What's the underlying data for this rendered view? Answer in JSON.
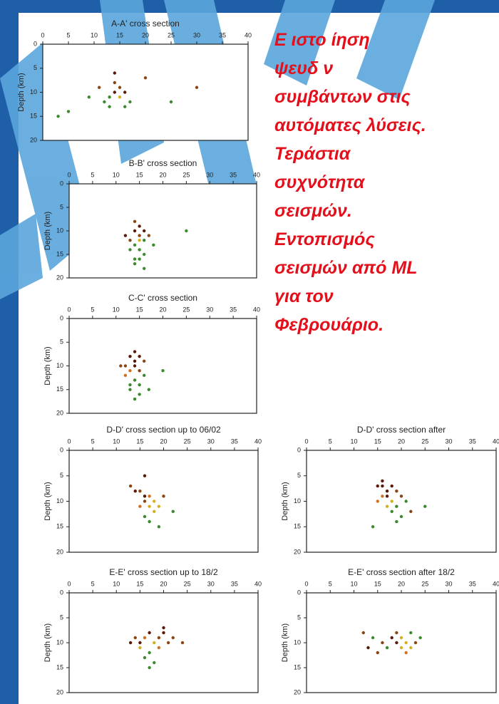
{
  "notes": [
    "Ε      ιστο      ίηση",
    "ψευδ   ν",
    "συμβάντων στις",
    "αυτόματες λύσεις.",
    "Τεράστια",
    "συχνότητα",
    "σεισμών.",
    "Εντοπισμός",
    "σεισμών από ML",
    "για τον",
    "Φεβρουάριο."
  ],
  "chart_data": [
    {
      "type": "scatter",
      "title": "A-A' cross section",
      "y_label": "Depth (km)",
      "xlim": [
        0,
        40
      ],
      "xticks": [
        0,
        5,
        10,
        15,
        20,
        25,
        30,
        35,
        40
      ],
      "ylim": [
        20,
        0
      ],
      "yticks": [
        0,
        5,
        10,
        15,
        20
      ],
      "x": [
        14,
        13,
        15,
        12,
        16,
        14,
        13,
        15,
        17,
        11,
        5,
        3,
        20,
        25,
        14,
        16,
        30,
        9
      ],
      "values": [
        10,
        11,
        9,
        12,
        10,
        8,
        13,
        11,
        12,
        9,
        14,
        15,
        7,
        12,
        6,
        13,
        9,
        11
      ],
      "colors": [
        "#5a1a0a",
        "#3c8a2e",
        "#8b4513",
        "#3c8a2e",
        "#5a1a0a",
        "#8b4513",
        "#3c8a2e",
        "#d4b020",
        "#3c8a2e",
        "#8b4513",
        "#3c8a2e",
        "#3c8a2e",
        "#8b4513",
        "#3c8a2e",
        "#5a1a0a",
        "#3c8a2e",
        "#8b4513",
        "#3c8a2e"
      ]
    },
    {
      "type": "scatter",
      "title": "B-B' cross section",
      "y_label": "Depth (km)",
      "xlim": [
        0,
        40
      ],
      "xticks": [
        0,
        5,
        10,
        15,
        20,
        25,
        30,
        35,
        40
      ],
      "ylim": [
        20,
        0
      ],
      "yticks": [
        0,
        5,
        10,
        15,
        20
      ],
      "x": [
        14,
        15,
        16,
        14,
        15,
        13,
        16,
        15,
        14,
        17,
        15,
        13,
        16,
        25,
        14,
        12,
        18,
        15,
        16,
        14
      ],
      "values": [
        10,
        11,
        12,
        13,
        14,
        12,
        15,
        16,
        17,
        11,
        9,
        14,
        18,
        10,
        8,
        11,
        13,
        12,
        10,
        16
      ],
      "colors": [
        "#5a1a0a",
        "#8b4513",
        "#3c8a2e",
        "#3c8a2e",
        "#3c8a2e",
        "#8b4513",
        "#3c8a2e",
        "#3c8a2e",
        "#3c8a2e",
        "#8b4513",
        "#5a1a0a",
        "#3c8a2e",
        "#3c8a2e",
        "#3c8a2e",
        "#8b4513",
        "#5a1a0a",
        "#3c8a2e",
        "#d4b020",
        "#5a1a0a",
        "#3c8a2e"
      ]
    },
    {
      "type": "scatter",
      "title": "C-C' cross section",
      "y_label": "Depth (km)",
      "xlim": [
        0,
        40
      ],
      "xticks": [
        0,
        5,
        10,
        15,
        20,
        25,
        30,
        35,
        40
      ],
      "ylim": [
        20,
        0
      ],
      "yticks": [
        0,
        5,
        10,
        15,
        20
      ],
      "x": [
        13,
        14,
        15,
        12,
        14,
        13,
        15,
        16,
        14,
        13,
        15,
        17,
        12,
        14,
        16,
        20,
        11,
        15,
        13,
        14
      ],
      "values": [
        8,
        9,
        8,
        10,
        10,
        11,
        11,
        12,
        13,
        14,
        14,
        15,
        12,
        7,
        9,
        11,
        10,
        16,
        15,
        17
      ],
      "colors": [
        "#5a1a0a",
        "#5a1a0a",
        "#5a1a0a",
        "#8b4513",
        "#5a1a0a",
        "#d07020",
        "#8b4513",
        "#3c8a2e",
        "#3c8a2e",
        "#3c8a2e",
        "#3c8a2e",
        "#3c8a2e",
        "#d07020",
        "#5a1a0a",
        "#8b4513",
        "#3c8a2e",
        "#8b4513",
        "#3c8a2e",
        "#3c8a2e",
        "#3c8a2e"
      ]
    },
    {
      "type": "scatter",
      "title": "D-D' cross section up to 06/02",
      "y_label": "Depth (km)",
      "xlim": [
        0,
        40
      ],
      "xticks": [
        0,
        5,
        10,
        15,
        20,
        25,
        30,
        35,
        40
      ],
      "ylim": [
        20,
        0
      ],
      "yticks": [
        0,
        5,
        10,
        15,
        20
      ],
      "x": [
        14,
        15,
        16,
        17,
        18,
        16,
        17,
        15,
        18,
        19,
        20,
        16,
        17,
        13,
        22,
        19,
        16
      ],
      "values": [
        8,
        8,
        9,
        9,
        10,
        10,
        11,
        11,
        12,
        11,
        9,
        13,
        14,
        7,
        12,
        15,
        5
      ],
      "colors": [
        "#5a1a0a",
        "#8b4513",
        "#5a1a0a",
        "#d07020",
        "#d4b020",
        "#8b4513",
        "#d4b020",
        "#d07020",
        "#d4b020",
        "#d4b020",
        "#8b4513",
        "#3c8a2e",
        "#3c8a2e",
        "#8b4513",
        "#3c8a2e",
        "#3c8a2e",
        "#5a1a0a"
      ]
    },
    {
      "type": "scatter",
      "title": "D-D' cross section after",
      "y_label": "Depth (km)",
      "xlim": [
        0,
        40
      ],
      "xticks": [
        0,
        5,
        10,
        15,
        20,
        25,
        30,
        35,
        40
      ],
      "ylim": [
        20,
        0
      ],
      "yticks": [
        0,
        5,
        10,
        15,
        20
      ],
      "x": [
        15,
        16,
        17,
        18,
        19,
        16,
        17,
        18,
        20,
        15,
        17,
        19,
        21,
        18,
        20,
        25,
        16,
        19,
        22,
        14
      ],
      "values": [
        7,
        7,
        8,
        7,
        8,
        9,
        9,
        10,
        9,
        10,
        11,
        11,
        10,
        12,
        13,
        11,
        6,
        14,
        12,
        15
      ],
      "colors": [
        "#5a1a0a",
        "#5a1a0a",
        "#5a1a0a",
        "#5a1a0a",
        "#8b4513",
        "#d07020",
        "#5a1a0a",
        "#d4b020",
        "#8b4513",
        "#d07020",
        "#d4b020",
        "#3c8a2e",
        "#3c8a2e",
        "#3c8a2e",
        "#3c8a2e",
        "#3c8a2e",
        "#5a1a0a",
        "#3c8a2e",
        "#8b4513",
        "#3c8a2e"
      ]
    },
    {
      "type": "scatter",
      "title": "E-E' cross section up to 18/2",
      "y_label": "Depth (km)",
      "xlim": [
        0,
        40
      ],
      "xticks": [
        0,
        5,
        10,
        15,
        20,
        25,
        30,
        35,
        40
      ],
      "ylim": [
        20,
        0
      ],
      "yticks": [
        0,
        5,
        10,
        15,
        20
      ],
      "x": [
        14,
        15,
        16,
        17,
        18,
        19,
        20,
        21,
        15,
        17,
        19,
        16,
        18,
        22,
        13,
        17,
        20,
        24
      ],
      "values": [
        9,
        10,
        9,
        8,
        10,
        9,
        8,
        10,
        11,
        12,
        11,
        13,
        14,
        9,
        10,
        15,
        7,
        10
      ],
      "colors": [
        "#8b4513",
        "#5a1a0a",
        "#d07020",
        "#5a1a0a",
        "#d4b020",
        "#8b4513",
        "#5a1a0a",
        "#8b4513",
        "#d4b020",
        "#3c8a2e",
        "#d07020",
        "#3c8a2e",
        "#3c8a2e",
        "#8b4513",
        "#5a1a0a",
        "#3c8a2e",
        "#5a1a0a",
        "#8b4513"
      ]
    },
    {
      "type": "scatter",
      "title": "E-E' cross section after 18/2",
      "y_label": "Depth (km)",
      "xlim": [
        0,
        40
      ],
      "xticks": [
        0,
        5,
        10,
        15,
        20,
        25,
        30,
        35,
        40
      ],
      "ylim": [
        20,
        0
      ],
      "yticks": [
        0,
        5,
        10,
        15,
        20
      ],
      "x": [
        12,
        14,
        16,
        18,
        19,
        20,
        21,
        22,
        23,
        20,
        21,
        17,
        19,
        22,
        15,
        24,
        13
      ],
      "values": [
        8,
        9,
        10,
        9,
        8,
        9,
        10,
        11,
        10,
        11,
        12,
        11,
        10,
        8,
        12,
        9,
        11
      ],
      "colors": [
        "#8b4513",
        "#3c8a2e",
        "#8b4513",
        "#5a1a0a",
        "#8b4513",
        "#d4b020",
        "#d4b020",
        "#d4b020",
        "#8b4513",
        "#d4b020",
        "#d07020",
        "#3c8a2e",
        "#5a1a0a",
        "#3c8a2e",
        "#8b4513",
        "#3c8a2e",
        "#5a1a0a"
      ]
    }
  ]
}
